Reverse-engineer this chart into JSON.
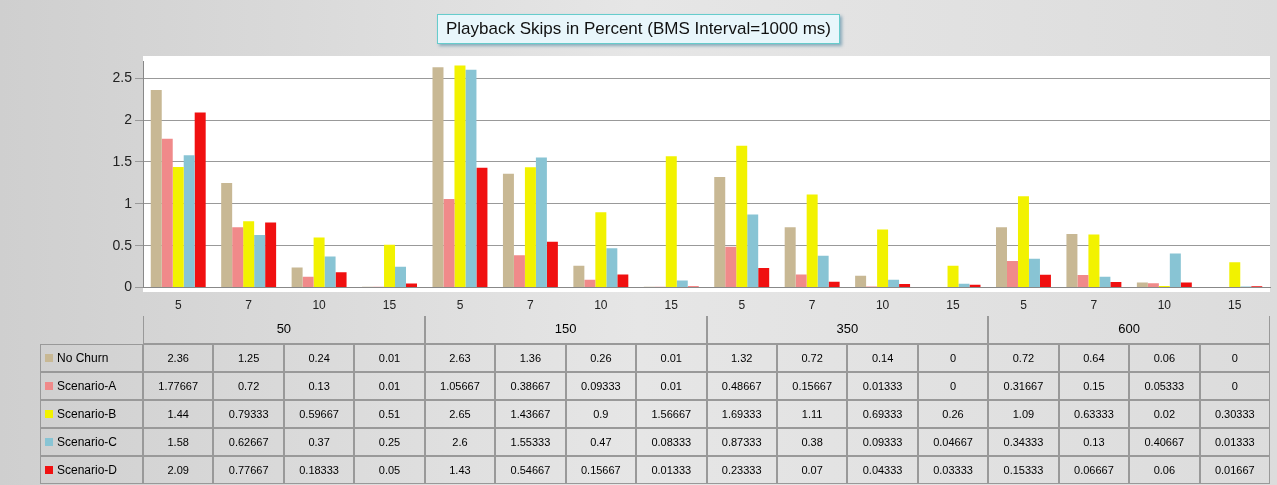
{
  "chart_data": {
    "type": "bar",
    "title": "Playback Skips in Percent  (BMS Interval=1000 ms)",
    "categories": [
      "5",
      "7",
      "10",
      "15",
      "5",
      "7",
      "10",
      "15",
      "5",
      "7",
      "10",
      "15",
      "5",
      "7",
      "10",
      "15"
    ],
    "annotations": [
      "50",
      "150",
      "350",
      "600"
    ],
    "series": [
      {
        "name": "No Churn",
        "color": "#c8b894",
        "values": [
          2.36,
          1.25,
          0.24,
          0.01,
          2.63,
          1.36,
          0.26,
          0.01,
          1.32,
          0.72,
          0.14,
          0,
          0.72,
          0.64,
          0.06,
          0
        ]
      },
      {
        "name": "Scenario-A",
        "color": "#f08a8a",
        "values": [
          1.77667,
          0.72,
          0.13,
          0.01,
          1.05667,
          0.38667,
          0.09333,
          0.01,
          0.48667,
          0.15667,
          0.01333,
          0,
          0.31667,
          0.15,
          0.05333,
          0
        ]
      },
      {
        "name": "Scenario-B",
        "color": "#f2f200",
        "values": [
          1.44,
          0.79333,
          0.59667,
          0.51,
          2.65,
          1.43667,
          0.9,
          1.56667,
          1.69333,
          1.11,
          0.69333,
          0.26,
          1.09,
          0.63333,
          0.02,
          0.30333
        ]
      },
      {
        "name": "Scenario-C",
        "color": "#88c4d4",
        "values": [
          1.58,
          0.62667,
          0.37,
          0.25,
          2.6,
          1.55333,
          0.47,
          0.08333,
          0.87333,
          0.38,
          0.09333,
          0.04667,
          0.34333,
          0.13,
          0.40667,
          0.01333
        ]
      },
      {
        "name": "Scenario-D",
        "color": "#f01010",
        "values": [
          2.09,
          0.77667,
          0.18333,
          0.05,
          1.43,
          0.54667,
          0.15667,
          0.01333,
          0.23333,
          0.07,
          0.04333,
          0.03333,
          0.15333,
          0.06667,
          0.06,
          0.01667
        ]
      }
    ],
    "ylim": [
      0,
      2.7
    ],
    "yticks": [
      0,
      0.5,
      1,
      1.5,
      2,
      2.5
    ],
    "grid": "y",
    "data_labels": true,
    "legend": "bottom left"
  }
}
